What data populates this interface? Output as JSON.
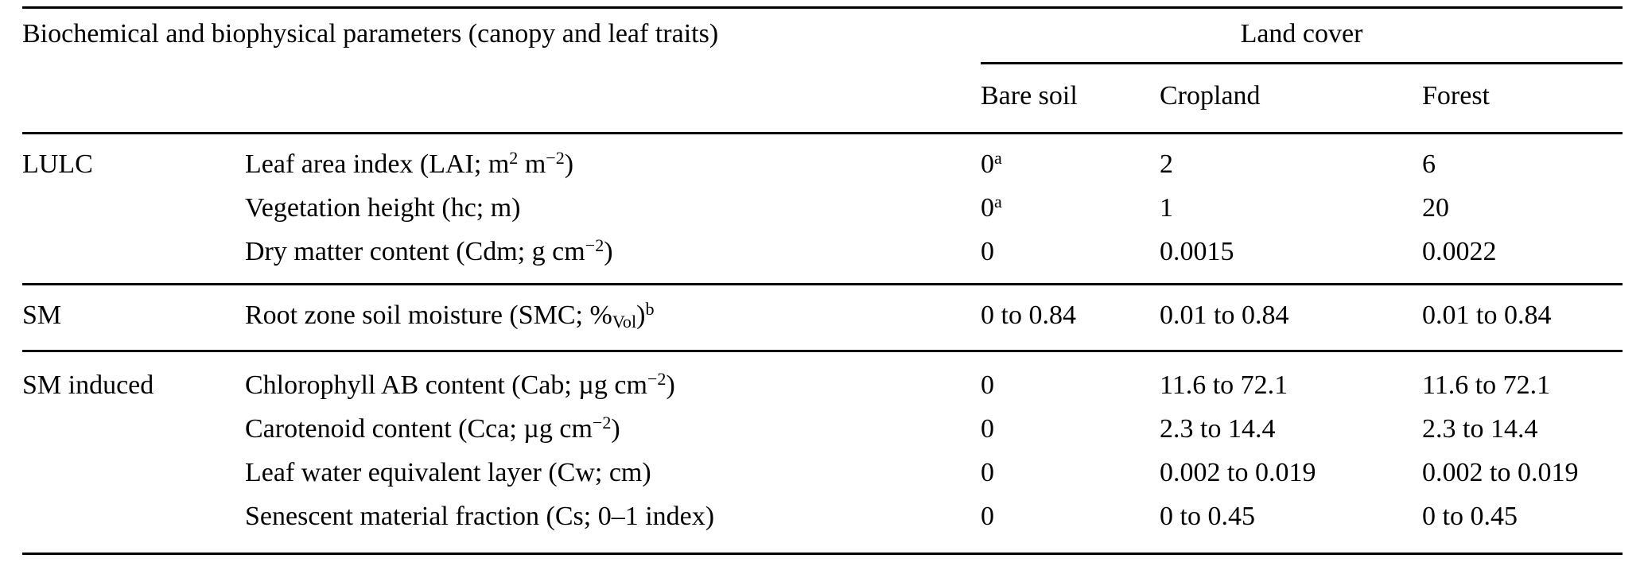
{
  "colors": {
    "background": "#ffffff",
    "text": "#000000",
    "rule": "#000000"
  },
  "table": {
    "header": {
      "parameters_title": "Biochemical and biophysical parameters (canopy and leaf traits)",
      "land_cover_title": "Land cover",
      "columns": [
        "Bare soil",
        "Cropland",
        "Forest"
      ]
    },
    "groups": [
      {
        "label": "LULC",
        "rows": [
          {
            "parameter": [
              {
                "t": "Leaf area index (LAI; m"
              },
              {
                "t": "2",
                "s": "sup"
              },
              {
                "t": " m"
              },
              {
                "t": "−2",
                "s": "sup"
              },
              {
                "t": ")"
              }
            ],
            "values": [
              [
                {
                  "t": "0"
                },
                {
                  "t": "a",
                  "s": "sup"
                }
              ],
              "2",
              "6"
            ]
          },
          {
            "parameter": "Vegetation height (hc; m)",
            "values": [
              [
                {
                  "t": "0"
                },
                {
                  "t": "a",
                  "s": "sup"
                }
              ],
              "1",
              "20"
            ]
          },
          {
            "parameter": [
              {
                "t": "Dry matter content (Cdm; g cm"
              },
              {
                "t": "−2",
                "s": "sup"
              },
              {
                "t": ")"
              }
            ],
            "values": [
              "0",
              "0.0015",
              "0.0022"
            ]
          }
        ]
      },
      {
        "label": "SM",
        "rows": [
          {
            "parameter": [
              {
                "t": "Root zone soil moisture (SMC; %"
              },
              {
                "t": "Vol",
                "s": "sub"
              },
              {
                "t": ")"
              },
              {
                "t": "b",
                "s": "sup"
              }
            ],
            "values": [
              "0 to 0.84",
              "0.01 to 0.84",
              "0.01 to 0.84"
            ]
          }
        ]
      },
      {
        "label": "SM induced",
        "rows": [
          {
            "parameter": [
              {
                "t": "Chlorophyll AB content (Cab; µg cm"
              },
              {
                "t": "−2",
                "s": "sup"
              },
              {
                "t": ")"
              }
            ],
            "values": [
              "0",
              "11.6 to 72.1",
              "11.6 to 72.1"
            ]
          },
          {
            "parameter": [
              {
                "t": "Carotenoid content (Cca; µg cm"
              },
              {
                "t": "−2",
                "s": "sup"
              },
              {
                "t": ")"
              }
            ],
            "values": [
              "0",
              "2.3 to 14.4",
              "2.3 to 14.4"
            ]
          },
          {
            "parameter": "Leaf water equivalent layer (Cw; cm)",
            "values": [
              "0",
              "0.002 to 0.019",
              "0.002 to 0.019"
            ]
          },
          {
            "parameter": "Senescent material fraction (Cs; 0–1 index)",
            "values": [
              "0",
              "0 to 0.45",
              "0 to 0.45"
            ]
          }
        ]
      }
    ]
  }
}
